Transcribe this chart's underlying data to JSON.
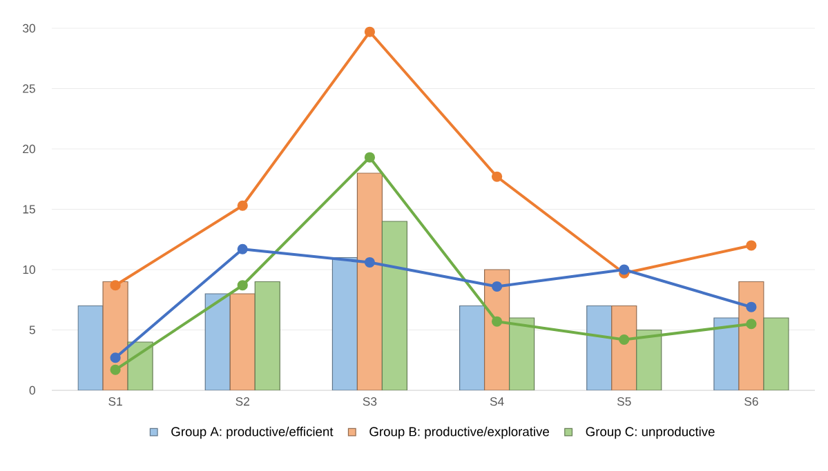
{
  "chart_data": {
    "type": "bar",
    "categories": [
      "S1",
      "S2",
      "S3",
      "S4",
      "S5",
      "S6"
    ],
    "series": [
      {
        "name": "Group A: productive/efficient",
        "color": "#9dc3e6",
        "values": [
          7,
          8,
          11,
          7,
          7,
          6
        ]
      },
      {
        "name": "Group B: productive/explorative",
        "color": "#f4b183",
        "values": [
          9,
          8,
          18,
          10,
          7,
          9
        ]
      },
      {
        "name": "Group C: unproductive",
        "color": "#a9d18e",
        "values": [
          4,
          9,
          14,
          6,
          5,
          6
        ]
      },
      {
        "type": "line",
        "color": "#4472c4",
        "values": [
          2.7,
          11.7,
          10.6,
          8.6,
          10,
          6.9
        ]
      },
      {
        "type": "line",
        "color": "#ed7d31",
        "values": [
          8.7,
          15.3,
          29.7,
          17.7,
          9.7,
          12
        ]
      },
      {
        "type": "line",
        "color": "#70ad47",
        "values": [
          1.7,
          8.7,
          19.3,
          5.7,
          4.2,
          5.5
        ]
      }
    ],
    "ylim": [
      0,
      30
    ],
    "yticks": [
      0,
      5,
      10,
      15,
      20,
      25,
      30
    ],
    "grid": "y",
    "legend": "bottom",
    "marker": "circle"
  }
}
